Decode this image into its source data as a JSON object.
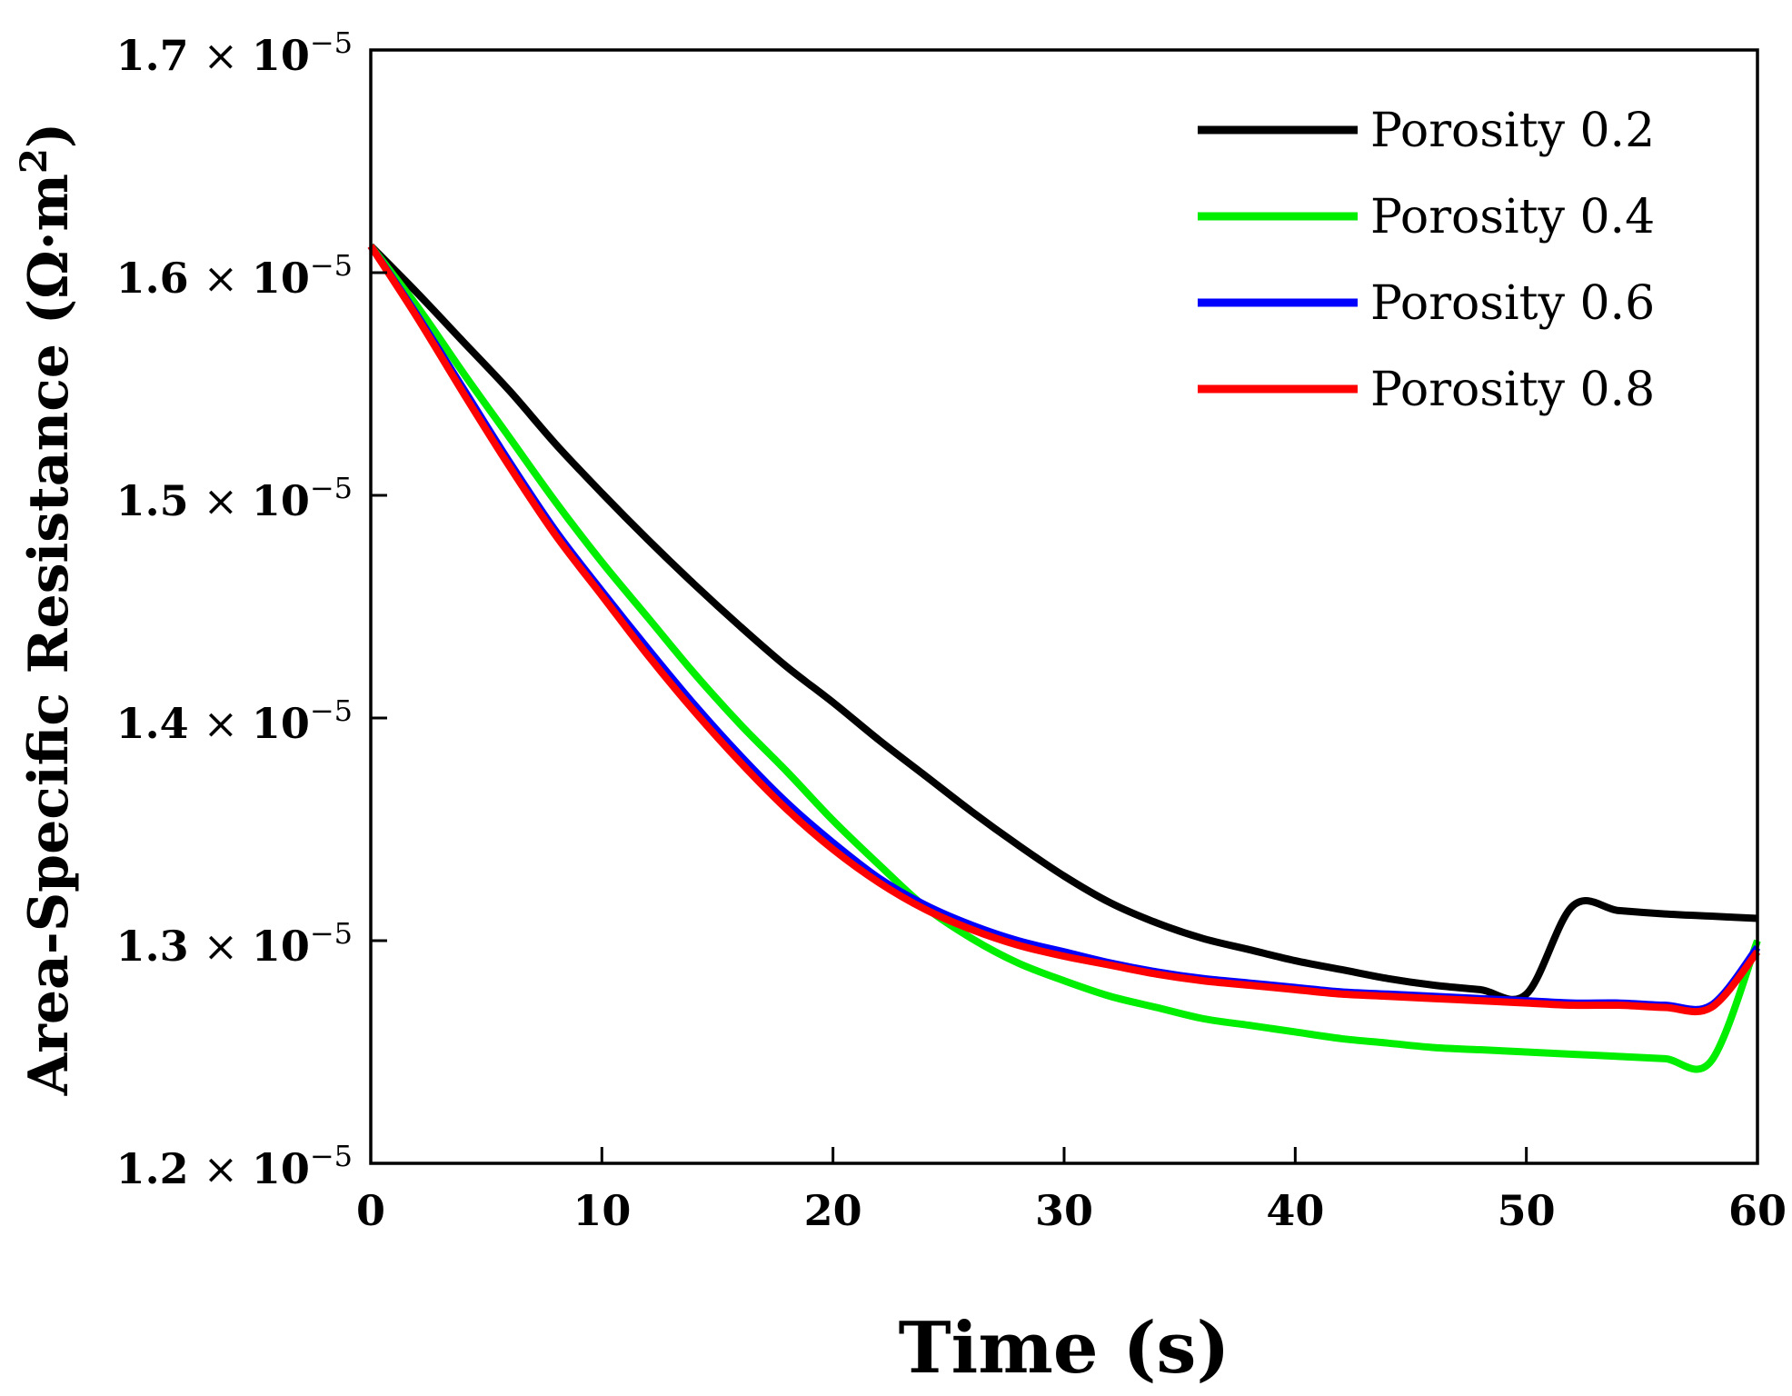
{
  "chart_data": {
    "type": "line",
    "title": "",
    "xlabel": "Time (s)",
    "ylabel_prefix": "Area-Specific Resistance (Ω·m",
    "ylabel_sup": "2",
    "ylabel_suffix": ")",
    "xlim": [
      0,
      60
    ],
    "ylim": [
      1.2e-05,
      1.7e-05
    ],
    "grid": false,
    "legend_position": "top-right",
    "x_ticks": [
      {
        "value": 0,
        "label": "0"
      },
      {
        "value": 10,
        "label": "10"
      },
      {
        "value": 20,
        "label": "20"
      },
      {
        "value": 30,
        "label": "30"
      },
      {
        "value": 40,
        "label": "40"
      },
      {
        "value": 50,
        "label": "50"
      },
      {
        "value": 60,
        "label": "60"
      }
    ],
    "y_ticks": [
      {
        "value": 1.2e-05,
        "mantissa": "1.2",
        "times": "×",
        "base": "10",
        "exponent": "−5"
      },
      {
        "value": 1.3e-05,
        "mantissa": "1.3",
        "times": "×",
        "base": "10",
        "exponent": "−5"
      },
      {
        "value": 1.4e-05,
        "mantissa": "1.4",
        "times": "×",
        "base": "10",
        "exponent": "−5"
      },
      {
        "value": 1.5e-05,
        "mantissa": "1.5",
        "times": "×",
        "base": "10",
        "exponent": "−5"
      },
      {
        "value": 1.6e-05,
        "mantissa": "1.6",
        "times": "×",
        "base": "10",
        "exponent": "−5"
      },
      {
        "value": 1.7e-05,
        "mantissa": "1.7",
        "times": "×",
        "base": "10",
        "exponent": "−5"
      }
    ],
    "x": [
      0,
      2,
      4,
      6,
      8,
      10,
      12,
      14,
      16,
      18,
      20,
      22,
      24,
      26,
      28,
      30,
      32,
      34,
      36,
      38,
      40,
      42,
      44,
      46,
      48,
      50,
      52,
      54,
      56,
      58,
      60
    ],
    "series": [
      {
        "name": "Porosity 0.2",
        "color": "#000000",
        "values": [
          1.612e-05,
          1.591e-05,
          1.569e-05,
          1.547e-05,
          1.523e-05,
          1.501e-05,
          1.48e-05,
          1.46e-05,
          1.441e-05,
          1.423e-05,
          1.407e-05,
          1.39e-05,
          1.374e-05,
          1.358e-05,
          1.343e-05,
          1.329e-05,
          1.317e-05,
          1.308e-05,
          1.301e-05,
          1.296e-05,
          1.291e-05,
          1.287e-05,
          1.283e-05,
          1.28e-05,
          1.278e-05,
          1.276e-05,
          1.3155e-05,
          1.3135e-05,
          1.312e-05,
          1.311e-05,
          1.31e-05
        ]
      },
      {
        "name": "Porosity 0.4",
        "color": "#00ee00",
        "values": [
          1.612e-05,
          1.585e-05,
          1.555e-05,
          1.526e-05,
          1.497e-05,
          1.47e-05,
          1.445e-05,
          1.42e-05,
          1.397e-05,
          1.376e-05,
          1.354e-05,
          1.334e-05,
          1.315e-05,
          1.301e-05,
          1.29e-05,
          1.282e-05,
          1.275e-05,
          1.27e-05,
          1.265e-05,
          1.262e-05,
          1.259e-05,
          1.256e-05,
          1.254e-05,
          1.252e-05,
          1.251e-05,
          1.25e-05,
          1.249e-05,
          1.248e-05,
          1.247e-05,
          1.246e-05,
          1.3e-05
        ]
      },
      {
        "name": "Porosity 0.6",
        "color": "#0000ff",
        "values": [
          1.612e-05,
          1.581e-05,
          1.548e-05,
          1.515e-05,
          1.484e-05,
          1.457e-05,
          1.431e-05,
          1.406e-05,
          1.383e-05,
          1.362e-05,
          1.344e-05,
          1.328e-05,
          1.316e-05,
          1.307e-05,
          1.3e-05,
          1.295e-05,
          1.29e-05,
          1.286e-05,
          1.283e-05,
          1.281e-05,
          1.279e-05,
          1.277e-05,
          1.276e-05,
          1.275e-05,
          1.274e-05,
          1.273e-05,
          1.272e-05,
          1.272e-05,
          1.271e-05,
          1.271e-05,
          1.297e-05
        ]
      },
      {
        "name": "Porosity 0.8",
        "color": "#ff0000",
        "values": [
          1.612e-05,
          1.58e-05,
          1.546e-05,
          1.513e-05,
          1.482e-05,
          1.455e-05,
          1.428e-05,
          1.403e-05,
          1.38e-05,
          1.359e-05,
          1.341e-05,
          1.326e-05,
          1.314e-05,
          1.305e-05,
          1.298e-05,
          1.293e-05,
          1.289e-05,
          1.285e-05,
          1.282e-05,
          1.28e-05,
          1.278e-05,
          1.276e-05,
          1.275e-05,
          1.274e-05,
          1.273e-05,
          1.272e-05,
          1.271e-05,
          1.271e-05,
          1.27e-05,
          1.27e-05,
          1.295e-05
        ]
      }
    ]
  }
}
